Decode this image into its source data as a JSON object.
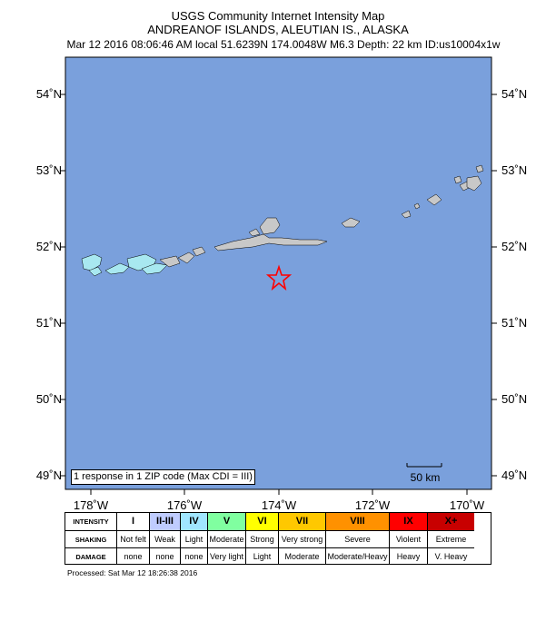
{
  "title": {
    "line1": "USGS Community Internet Intensity Map",
    "line2": "ANDREANOF ISLANDS, ALEUTIAN IS., ALASKA",
    "line3": "Mar 12 2016 08:06:46 AM local 51.6239N 174.0048W M6.3 Depth: 22 km ID:us10004x1w"
  },
  "map": {
    "ocean_color": "#7aa0dc",
    "land_color": "#c8c8c8",
    "cdi_land_color": "#a8e8f0",
    "epicenter": {
      "lat": 51.6239,
      "lon": -174.0048,
      "marker": "star-icon",
      "color": "#ff0000"
    },
    "lat_labels": [
      "54˚N",
      "53˚N",
      "52˚N",
      "51˚N",
      "50˚N",
      "49˚N"
    ],
    "lon_labels": [
      "178˚W",
      "176˚W",
      "174˚W",
      "172˚W",
      "170˚W"
    ],
    "response_text": "1 response in 1 ZIP code (Max CDI = III)",
    "scale_label": "50 km"
  },
  "legend": {
    "row_labels": [
      "INTENSITY",
      "SHAKING",
      "DAMAGE"
    ],
    "intensity": [
      "I",
      "II-III",
      "IV",
      "V",
      "VI",
      "VII",
      "VIII",
      "IX",
      "X+"
    ],
    "colors": [
      "#ffffff",
      "#bfccff",
      "#a0e6ff",
      "#80ffa0",
      "#ffff00",
      "#ffc800",
      "#ff9100",
      "#ff0000",
      "#c80000"
    ],
    "shaking": [
      "Not felt",
      "Weak",
      "Light",
      "Moderate",
      "Strong",
      "Very strong",
      "Severe",
      "Violent",
      "Extreme"
    ],
    "damage": [
      "none",
      "none",
      "none",
      "Very light",
      "Light",
      "Moderate",
      "Moderate/Heavy",
      "Heavy",
      "V. Heavy"
    ]
  },
  "processed": "Processed: Sat Mar 12 18:26:38 2016"
}
